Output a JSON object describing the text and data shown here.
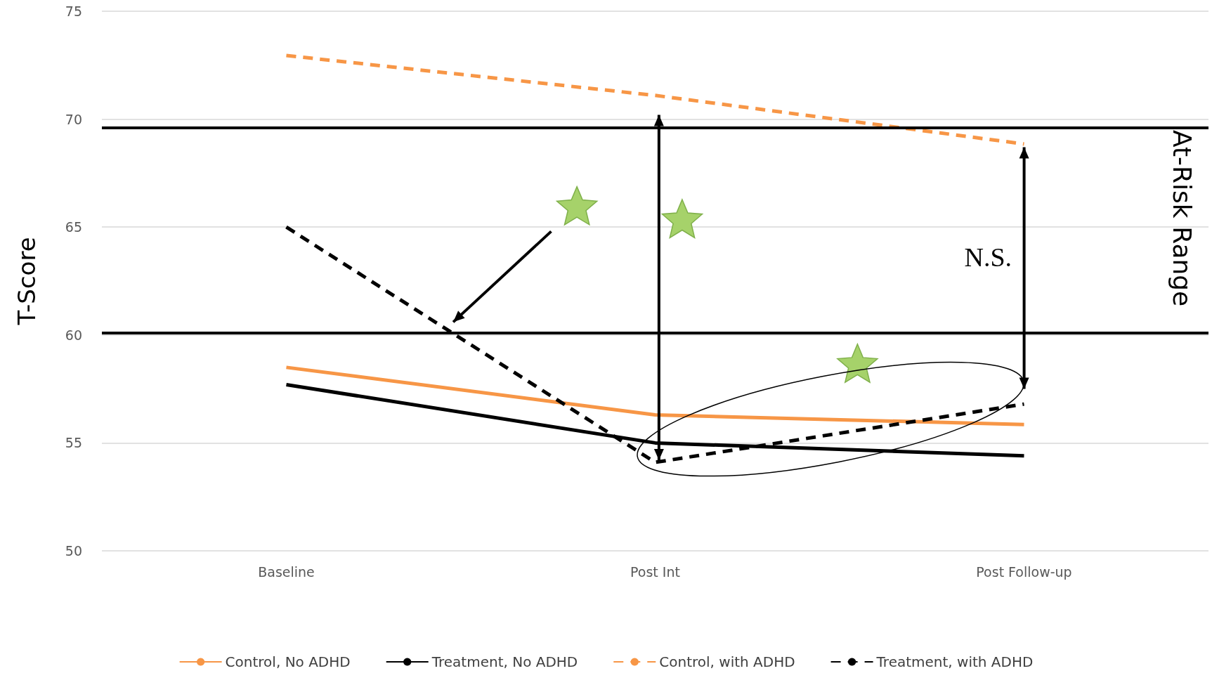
{
  "chart_data": {
    "type": "line",
    "ylabel": "T-Score",
    "categories": [
      "Baseline",
      "Post Int",
      "Post Follow-up"
    ],
    "series": [
      {
        "name": "Control, No ADHD",
        "color": "#f79646",
        "line_style": "solid",
        "values": [
          58.5,
          56.3,
          55.85
        ]
      },
      {
        "name": "Treatment, No ADHD",
        "color": "#000000",
        "line_style": "solid",
        "values": [
          57.7,
          55.0,
          54.4
        ]
      },
      {
        "name": "Control, with ADHD",
        "color": "#f79646",
        "line_style": "dashed",
        "values": [
          72.95,
          71.1,
          68.85
        ]
      },
      {
        "name": "Treatment, with ADHD",
        "color": "#000000",
        "line_style": "dashed",
        "values": [
          65.0,
          54.1,
          56.8
        ]
      }
    ],
    "ylim": [
      50,
      75
    ],
    "yticks": [
      50,
      55,
      60,
      65,
      70,
      75
    ],
    "grid": "y",
    "legend": "bottom",
    "marker": "none",
    "ref_lines": [
      {
        "axis": "y",
        "value": 69.6,
        "color": "#000000"
      },
      {
        "axis": "y",
        "value": 60.1,
        "color": "#000000"
      }
    ],
    "annotations": [
      "N.S.",
      "At-Risk Range"
    ]
  }
}
